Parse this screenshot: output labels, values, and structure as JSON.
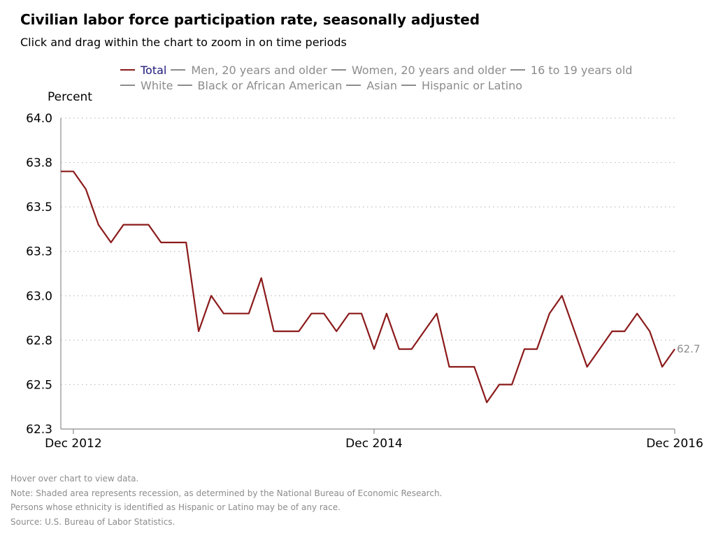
{
  "chart_data": {
    "type": "line",
    "title": "Civilian labor force participation rate, seasonally adjusted",
    "subtitle": "Click and drag within the chart to zoom in on time periods",
    "ylabel": "Percent",
    "xlabel": "",
    "ylim": [
      62.25,
      64.0
    ],
    "y_ticks": [
      "64.0",
      "63.8",
      "63.5",
      "63.3",
      "63.0",
      "62.8",
      "62.5",
      "62.3"
    ],
    "y_tick_values": [
      64.0,
      63.75,
      63.5,
      63.25,
      63.0,
      62.75,
      62.5,
      62.25
    ],
    "x_ticks": [
      "Dec 2012",
      "Dec 2014",
      "Dec 2016"
    ],
    "x_tick_index": [
      1,
      25,
      49
    ],
    "x_range_index": [
      0,
      49
    ],
    "grid": "horizontal dotted",
    "legend": "top",
    "series": [
      {
        "name": "Total",
        "color": "#8b1a1a",
        "x_start": "Nov 2012",
        "x_end": "Dec 2016",
        "values": [
          63.7,
          63.7,
          63.6,
          63.4,
          63.3,
          63.4,
          63.4,
          63.4,
          63.3,
          63.3,
          63.3,
          62.8,
          63.0,
          62.9,
          62.9,
          62.9,
          63.1,
          62.8,
          62.8,
          62.8,
          62.9,
          62.9,
          62.8,
          62.9,
          62.9,
          62.7,
          62.9,
          62.7,
          62.7,
          62.8,
          62.9,
          62.6,
          62.6,
          62.6,
          62.4,
          62.5,
          62.5,
          62.7,
          62.7,
          62.9,
          63.0,
          62.8,
          62.6,
          62.7,
          62.8,
          62.8,
          62.9,
          62.8,
          62.6,
          62.7
        ],
        "end_label": "62.7"
      }
    ]
  },
  "legend": {
    "row1": [
      "Total",
      "Men, 20 years and older",
      "Women, 20 years and older",
      "16 to 19 years old"
    ],
    "row2": [
      "White",
      "Black or African American",
      "Asian",
      "Hispanic or Latino"
    ]
  },
  "notes": [
    "Hover over chart to view data.",
    "Note: Shaded area represents recession, as determined by the National Bureau of Economic Research.",
    "Persons whose ethnicity is identified as Hispanic or Latino may be of any race.",
    "Source: U.S. Bureau of Labor Statistics."
  ]
}
